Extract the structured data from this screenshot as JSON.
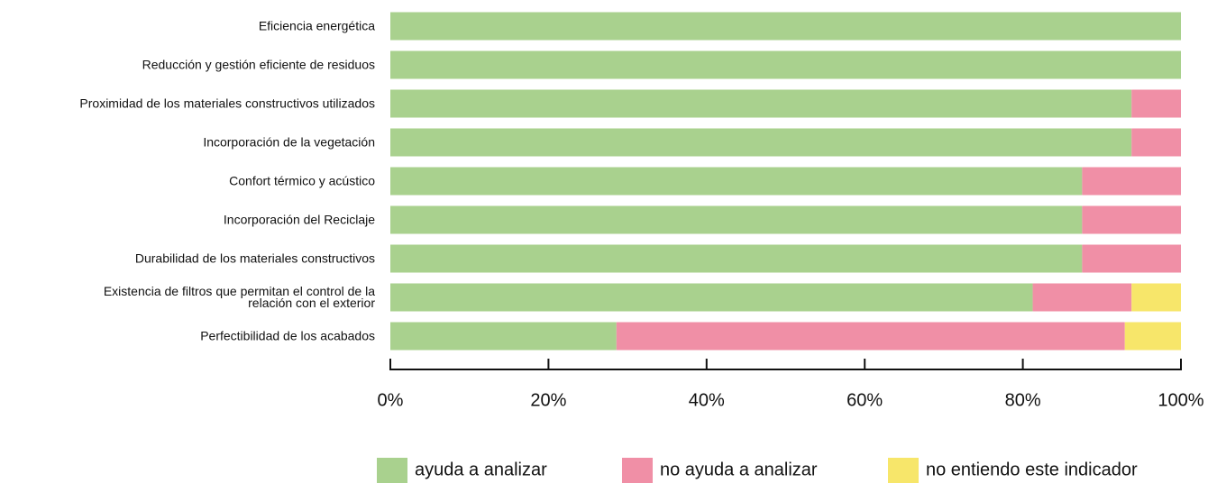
{
  "chart_data": {
    "type": "stacked-barh",
    "categories": [
      "Eficiencia energética",
      "Reducción y gestión eficiente de residuos",
      "Proximidad de los materiales constructivos utilizados",
      "Incorporación de la vegetación",
      "Confort térmico y acústico",
      "Incorporación del Reciclaje",
      "Durabilidad de los materiales constructivos",
      "Existencia de filtros que permitan el control de la\nrelación con el exterior",
      "Perfectibilidad de los acabados"
    ],
    "series": [
      {
        "name": "ayuda a analizar",
        "color": "#a9d18e",
        "values": [
          100,
          100,
          93.75,
          93.75,
          87.5,
          87.5,
          87.5,
          81.25,
          28.6
        ]
      },
      {
        "name": "no ayuda a analizar",
        "color": "#f08fa6",
        "values": [
          0,
          0,
          6.25,
          6.25,
          12.5,
          12.5,
          12.5,
          12.5,
          64.3
        ]
      },
      {
        "name": "no entiendo este indicador",
        "color": "#f7e66a",
        "values": [
          0,
          0,
          0,
          0,
          0,
          0,
          0,
          6.25,
          7.1
        ]
      }
    ],
    "xlim": [
      0,
      100
    ],
    "xticks": [
      {
        "value": 0,
        "label": "0%"
      },
      {
        "value": 20,
        "label": "20%"
      },
      {
        "value": 40,
        "label": "40%"
      },
      {
        "value": 60,
        "label": "60%"
      },
      {
        "value": 80,
        "label": "80%"
      },
      {
        "value": 100,
        "label": "100%"
      }
    ],
    "legend": "bottom"
  }
}
